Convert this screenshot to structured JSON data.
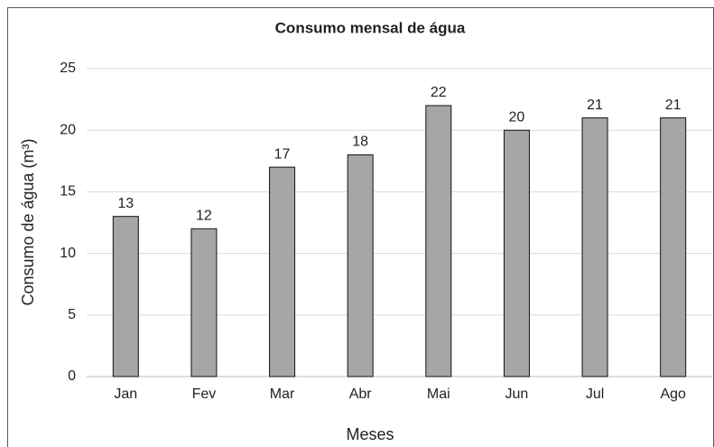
{
  "chart_data": {
    "type": "bar",
    "title": "Consumo mensal de água",
    "x_label": "Meses",
    "y_label": "Consumo de água (m³)",
    "categories": [
      "Jan",
      "Fev",
      "Mar",
      "Abr",
      "Mai",
      "Jun",
      "Jul",
      "Ago"
    ],
    "values": [
      13,
      12,
      17,
      18,
      22,
      20,
      21,
      21
    ],
    "color": "#a6a6a8",
    "ylim": [
      0,
      25
    ],
    "yticks": [
      0,
      5,
      10,
      15,
      20,
      25
    ],
    "grid": true
  }
}
